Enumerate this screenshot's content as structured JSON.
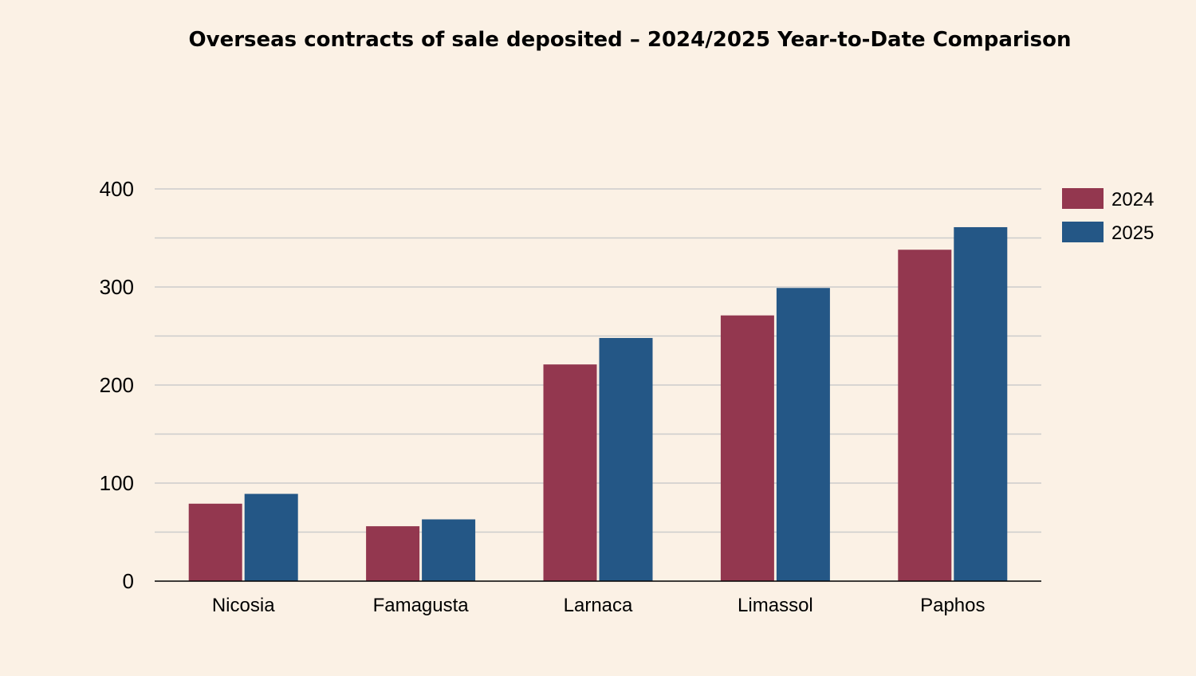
{
  "chart_data": {
    "type": "bar",
    "title": "Overseas contracts of sale deposited – 2024/2025 Year-to-Date Comparison",
    "xlabel": "",
    "ylabel": "",
    "categories": [
      "Nicosia",
      "Famagusta",
      "Larnaca",
      "Limassol",
      "Paphos"
    ],
    "series": [
      {
        "name": "2024",
        "color": "#93374f",
        "values": [
          79,
          56,
          221,
          271,
          338
        ]
      },
      {
        "name": "2025",
        "color": "#245786",
        "values": [
          89,
          63,
          248,
          299,
          361
        ]
      }
    ],
    "ylim": [
      0,
      400
    ],
    "yticks": [
      0,
      100,
      200,
      300,
      400
    ],
    "minor_gridlines": true,
    "grid": true,
    "legend_position": "right-top",
    "background_color": "#fbf1e5",
    "gridline_color": "#cccccc"
  }
}
